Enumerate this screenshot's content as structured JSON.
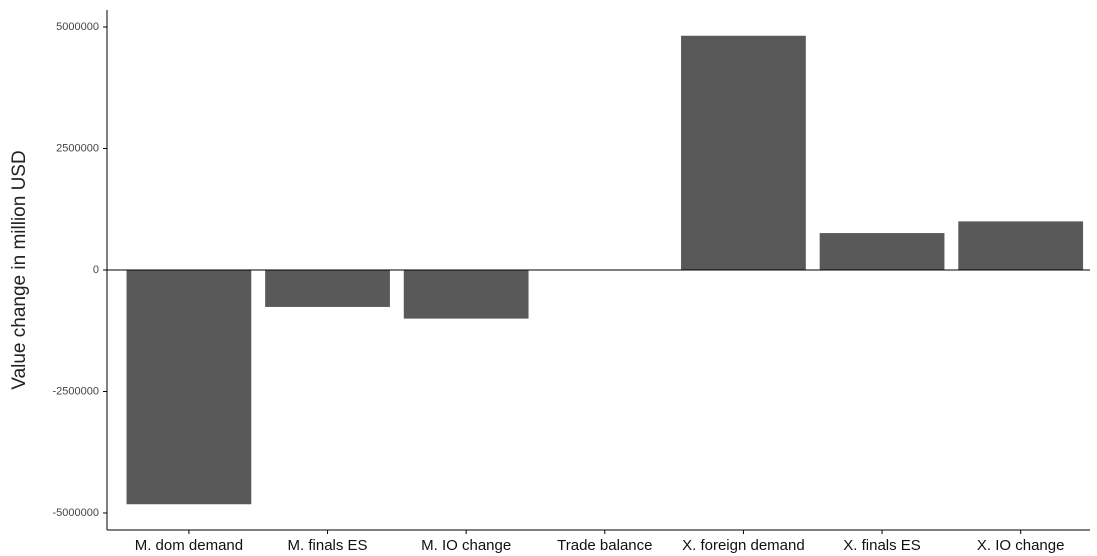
{
  "chart_data": {
    "type": "bar",
    "y_label": "Value change in million USD",
    "categories": [
      "M. dom demand",
      "M. finals ES",
      "M. IO change",
      "Trade balance",
      "X. foreign demand",
      "X. finals ES",
      "X. IO change"
    ],
    "values": [
      -4820000,
      -760000,
      -1000000,
      0,
      4820000,
      760000,
      1000000
    ],
    "color": "#595959",
    "ylim": [
      -5350000,
      5350000
    ],
    "yticks": [
      -5000000,
      -2500000,
      0,
      2500000,
      5000000
    ],
    "grid": false
  }
}
